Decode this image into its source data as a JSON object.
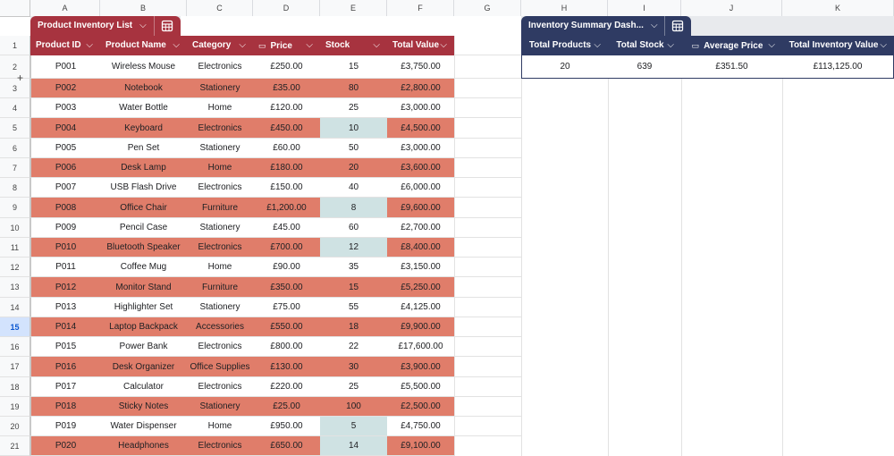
{
  "columns": [
    "A",
    "B",
    "C",
    "D",
    "E",
    "F",
    "G",
    "H",
    "I",
    "J",
    "K"
  ],
  "row_numbers": [
    "1",
    "2",
    "3",
    "4",
    "5",
    "6",
    "7",
    "8",
    "9",
    "10",
    "11",
    "12",
    "13",
    "14",
    "15",
    "16",
    "17",
    "18",
    "19",
    "20",
    "21"
  ],
  "selected_row": "15",
  "left_table": {
    "name": "Product Inventory List",
    "header_color": "#a7333f",
    "highlight_row_color": "#e07d6a",
    "low_stock_color": "#cfe2e3",
    "headers": [
      "Product ID",
      "Product Name",
      "Category",
      "Price",
      "Stock",
      "Total Value"
    ],
    "rows": [
      {
        "id": "P001",
        "name": "Wireless Mouse",
        "category": "Electronics",
        "price": "£250.00",
        "stock": "15",
        "total": "£3,750.00",
        "highlight": false,
        "low": false
      },
      {
        "id": "P002",
        "name": "Notebook",
        "category": "Stationery",
        "price": "£35.00",
        "stock": "80",
        "total": "£2,800.00",
        "highlight": true,
        "low": false
      },
      {
        "id": "P003",
        "name": "Water Bottle",
        "category": "Home",
        "price": "£120.00",
        "stock": "25",
        "total": "£3,000.00",
        "highlight": false,
        "low": false
      },
      {
        "id": "P004",
        "name": "Keyboard",
        "category": "Electronics",
        "price": "£450.00",
        "stock": "10",
        "total": "£4,500.00",
        "highlight": true,
        "low": true
      },
      {
        "id": "P005",
        "name": "Pen Set",
        "category": "Stationery",
        "price": "£60.00",
        "stock": "50",
        "total": "£3,000.00",
        "highlight": false,
        "low": false
      },
      {
        "id": "P006",
        "name": "Desk Lamp",
        "category": "Home",
        "price": "£180.00",
        "stock": "20",
        "total": "£3,600.00",
        "highlight": true,
        "low": false
      },
      {
        "id": "P007",
        "name": "USB Flash Drive",
        "category": "Electronics",
        "price": "£150.00",
        "stock": "40",
        "total": "£6,000.00",
        "highlight": false,
        "low": false
      },
      {
        "id": "P008",
        "name": "Office Chair",
        "category": "Furniture",
        "price": "£1,200.00",
        "stock": "8",
        "total": "£9,600.00",
        "highlight": true,
        "low": true
      },
      {
        "id": "P009",
        "name": "Pencil Case",
        "category": "Stationery",
        "price": "£45.00",
        "stock": "60",
        "total": "£2,700.00",
        "highlight": false,
        "low": false
      },
      {
        "id": "P010",
        "name": "Bluetooth Speaker",
        "category": "Electronics",
        "price": "£700.00",
        "stock": "12",
        "total": "£8,400.00",
        "highlight": true,
        "low": true
      },
      {
        "id": "P011",
        "name": "Coffee Mug",
        "category": "Home",
        "price": "£90.00",
        "stock": "35",
        "total": "£3,150.00",
        "highlight": false,
        "low": false
      },
      {
        "id": "P012",
        "name": "Monitor Stand",
        "category": "Furniture",
        "price": "£350.00",
        "stock": "15",
        "total": "£5,250.00",
        "highlight": true,
        "low": false
      },
      {
        "id": "P013",
        "name": "Highlighter Set",
        "category": "Stationery",
        "price": "£75.00",
        "stock": "55",
        "total": "£4,125.00",
        "highlight": false,
        "low": false
      },
      {
        "id": "P014",
        "name": "Laptop Backpack",
        "category": "Accessories",
        "price": "£550.00",
        "stock": "18",
        "total": "£9,900.00",
        "highlight": true,
        "low": false
      },
      {
        "id": "P015",
        "name": "Power Bank",
        "category": "Electronics",
        "price": "£800.00",
        "stock": "22",
        "total": "£17,600.00",
        "highlight": false,
        "low": false
      },
      {
        "id": "P016",
        "name": "Desk Organizer",
        "category": "Office Supplies",
        "price": "£130.00",
        "stock": "30",
        "total": "£3,900.00",
        "highlight": true,
        "low": false
      },
      {
        "id": "P017",
        "name": "Calculator",
        "category": "Electronics",
        "price": "£220.00",
        "stock": "25",
        "total": "£5,500.00",
        "highlight": false,
        "low": false
      },
      {
        "id": "P018",
        "name": "Sticky Notes",
        "category": "Stationery",
        "price": "£25.00",
        "stock": "100",
        "total": "£2,500.00",
        "highlight": true,
        "low": false
      },
      {
        "id": "P019",
        "name": "Water Dispenser",
        "category": "Home",
        "price": "£950.00",
        "stock": "5",
        "total": "£4,750.00",
        "highlight": false,
        "low": true
      },
      {
        "id": "P020",
        "name": "Headphones",
        "category": "Electronics",
        "price": "£650.00",
        "stock": "14",
        "total": "£9,100.00",
        "highlight": true,
        "low": true
      }
    ]
  },
  "right_table": {
    "name": "Inventory Summary Dash...",
    "header_color": "#2f3b63",
    "headers": [
      "Total Products",
      "Total Stock",
      "Average Price",
      "Total Inventory Value"
    ],
    "values": [
      "20",
      "639",
      "£351.50",
      "£113,125.00"
    ]
  },
  "icons": {
    "dropdown": "chevron-down-icon",
    "table": "table-icon",
    "currency": "currency-icon",
    "add": "plus-icon"
  }
}
